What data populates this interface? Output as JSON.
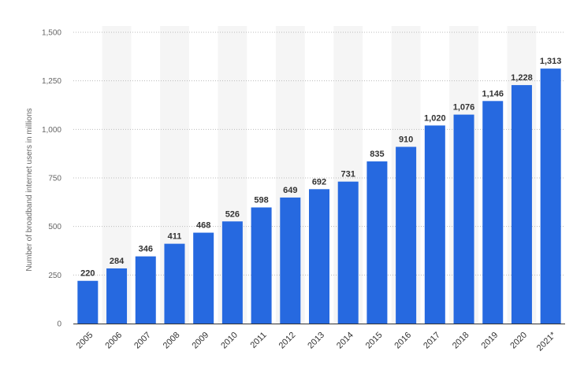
{
  "chart_data": {
    "type": "bar",
    "title": "",
    "xlabel": "",
    "ylabel": "Number of broadband internet users in millions",
    "ylim": [
      0,
      1500
    ],
    "yticks": [
      0,
      250,
      500,
      750,
      1000,
      1250,
      1500
    ],
    "ytick_labels": [
      "0",
      "250",
      "500",
      "750",
      "1,000",
      "1,250",
      "1,500"
    ],
    "categories": [
      "2005",
      "2006",
      "2007",
      "2008",
      "2009",
      "2010",
      "2011",
      "2012",
      "2013",
      "2014",
      "2015",
      "2016",
      "2017",
      "2018",
      "2019",
      "2020",
      "2021*"
    ],
    "values": [
      220,
      284,
      346,
      411,
      468,
      526,
      598,
      649,
      692,
      731,
      835,
      910,
      1020,
      1076,
      1146,
      1228,
      1313
    ],
    "value_labels": [
      "220",
      "284",
      "346",
      "411",
      "468",
      "526",
      "598",
      "649",
      "692",
      "731",
      "835",
      "910",
      "1,020",
      "1,076",
      "1,146",
      "1,228",
      "1,313"
    ],
    "bar_color": "#2669e0",
    "band_color": "#f5f5f5",
    "grid": true,
    "legend": false
  }
}
